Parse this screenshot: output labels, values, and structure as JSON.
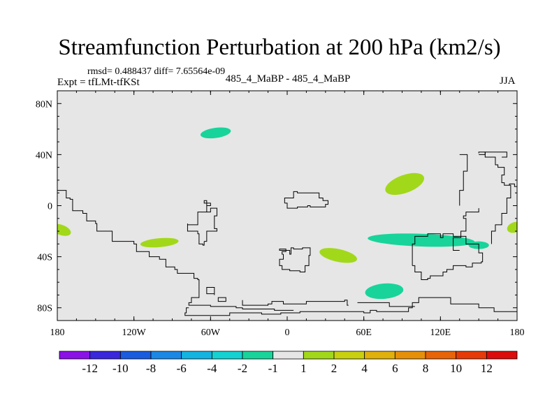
{
  "title": "Streamfunction Perturbation at 200 hPa (km2/s)",
  "stats_text": "rmsd= 0.488437 diff= 7.65564e-09",
  "experiment_label": "Expt = tfLMt-tfKSt",
  "difference_label": "485_4_MaBP - 485_4_MaBP",
  "season": "JJA",
  "chart_data": {
    "type": "heatmap",
    "title": "Streamfunction Perturbation at 200 hPa (km2/s)",
    "xlim": [
      -180,
      180
    ],
    "ylim": [
      -90,
      90
    ],
    "x_ticks": [
      {
        "value": -180,
        "label": "180"
      },
      {
        "value": -120,
        "label": "120W"
      },
      {
        "value": -60,
        "label": "60W"
      },
      {
        "value": 0,
        "label": "0"
      },
      {
        "value": 60,
        "label": "60E"
      },
      {
        "value": 120,
        "label": "120E"
      },
      {
        "value": 180,
        "label": "180"
      }
    ],
    "y_ticks": [
      {
        "value": 80,
        "label": "80N"
      },
      {
        "value": 40,
        "label": "40N"
      },
      {
        "value": 0,
        "label": "0"
      },
      {
        "value": -40,
        "label": "40S"
      },
      {
        "value": -80,
        "label": "80S"
      }
    ],
    "background_color": "#e6e6e6",
    "anomalies": [
      {
        "name": "north-atlantic-negative",
        "lon": -56,
        "lat": 57,
        "rx": 12,
        "ry": 4,
        "rot": -8,
        "level": "-2 to -1",
        "color": "#18d49a"
      },
      {
        "name": "pacific-positive-west-edge",
        "lon": -177,
        "lat": -19,
        "rx": 8,
        "ry": 4,
        "rot": 20,
        "level": "1 to 2",
        "color": "#a2d81a"
      },
      {
        "name": "south-pacific-positive",
        "lon": -100,
        "lat": -29,
        "rx": 15,
        "ry": 3.5,
        "rot": -5,
        "level": "1 to 2",
        "color": "#a2d81a"
      },
      {
        "name": "south-atlantic-positive",
        "lon": 40,
        "lat": -39,
        "rx": 15,
        "ry": 5,
        "rot": 12,
        "level": "1 to 2",
        "color": "#a2d81a"
      },
      {
        "name": "arabian-sea-positive",
        "lon": 92,
        "lat": 17,
        "rx": 16,
        "ry": 7,
        "rot": -20,
        "level": "1 to 2",
        "color": "#a2d81a"
      },
      {
        "name": "indian-ocean-negative",
        "lon": 105,
        "lat": -27,
        "rx": 42,
        "ry": 5,
        "rot": 2,
        "level": "-2 to -1",
        "color": "#18d49a"
      },
      {
        "name": "australia-negative-tail",
        "lon": 150,
        "lat": -31,
        "rx": 8,
        "ry": 3,
        "rot": 0,
        "level": "-2 to -1",
        "color": "#18d49a"
      },
      {
        "name": "southern-ocean-negative",
        "lon": 76,
        "lat": -67,
        "rx": 15,
        "ry": 6,
        "rot": -5,
        "level": "-2 to -1",
        "color": "#18d49a"
      },
      {
        "name": "pacific-positive-east-edge",
        "lon": 178,
        "lat": -17,
        "rx": 6,
        "ry": 4,
        "rot": -20,
        "level": "1 to 2",
        "color": "#a2d81a"
      }
    ],
    "colorbar": {
      "colors": [
        "#8a12e6",
        "#3a28dc",
        "#1a5ce0",
        "#1c88e6",
        "#14b4e0",
        "#14d2d2",
        "#18d49a",
        "#e6e6e6",
        "#a2d81a",
        "#c8d010",
        "#e0b00c",
        "#e6900a",
        "#e86408",
        "#e63a08",
        "#dc0c0c"
      ],
      "labels": [
        "-12",
        "-10",
        "-8",
        "-6",
        "-4",
        "-2",
        "-1",
        "1",
        "2",
        "4",
        "6",
        "8",
        "10",
        "12"
      ]
    },
    "coastline_paths": [
      [
        [
          -180,
          12
        ],
        [
          -175,
          12
        ],
        [
          -173,
          6
        ],
        [
          -170,
          5
        ],
        [
          -168,
          -4
        ],
        [
          -160,
          -6
        ],
        [
          -157,
          -12
        ],
        [
          -150,
          -14
        ],
        [
          -149,
          -20
        ],
        [
          -138,
          -20
        ],
        [
          -137,
          -28
        ],
        [
          -120,
          -30
        ],
        [
          -118,
          -36
        ],
        [
          -108,
          -40
        ],
        [
          -100,
          -42
        ],
        [
          -95,
          -48
        ],
        [
          -88,
          -50
        ],
        [
          -86,
          -53
        ],
        [
          -75,
          -53
        ],
        [
          -73,
          -57
        ],
        [
          -70,
          -58
        ],
        [
          -69,
          -72
        ],
        [
          -74,
          -72
        ],
        [
          -75,
          -76
        ],
        [
          -77,
          -78
        ],
        [
          -60,
          -79
        ],
        [
          -40,
          -80
        ],
        [
          -35,
          -81
        ],
        [
          -15,
          -81
        ],
        [
          -10,
          -82
        ],
        [
          5,
          -82
        ]
      ],
      [
        [
          -77,
          -80
        ],
        [
          -79,
          -84
        ],
        [
          -80,
          -86
        ],
        [
          -45,
          -84
        ],
        [
          -20,
          -85
        ],
        [
          -5,
          -84
        ],
        [
          10,
          -83
        ],
        [
          50,
          -83
        ],
        [
          60,
          -84
        ],
        [
          65,
          -82
        ],
        [
          70,
          -83
        ],
        [
          95,
          -80
        ],
        [
          98,
          -76
        ],
        [
          102,
          -76
        ],
        [
          103,
          -72
        ],
        [
          125,
          -72
        ],
        [
          128,
          -77
        ],
        [
          145,
          -77
        ],
        [
          150,
          -80
        ],
        [
          160,
          -80
        ],
        [
          162,
          -83
        ],
        [
          175,
          -83
        ],
        [
          180,
          -84
        ]
      ],
      [
        [
          -35,
          -74
        ],
        [
          -35,
          -78
        ],
        [
          -15,
          -77
        ],
        [
          -12,
          -75
        ],
        [
          -5,
          -75
        ],
        [
          -3,
          -77
        ],
        [
          10,
          -77
        ],
        [
          15,
          -75
        ],
        [
          45,
          -74
        ],
        [
          47,
          -78
        ],
        [
          48,
          -78
        ]
      ],
      [
        [
          55,
          -76
        ],
        [
          80,
          -77
        ],
        [
          80,
          -79
        ],
        [
          100,
          -79
        ]
      ],
      [
        [
          -65,
          -28
        ],
        [
          -63,
          -20
        ],
        [
          -55,
          -18
        ],
        [
          -57,
          -8
        ],
        [
          -55,
          -2
        ],
        [
          -60,
          -5
        ],
        [
          -63,
          0
        ],
        [
          -60,
          2
        ],
        [
          -65,
          4
        ],
        [
          -63,
          -5
        ],
        [
          -70,
          -8
        ],
        [
          -70,
          -15
        ],
        [
          -78,
          -14
        ],
        [
          -78,
          -20
        ],
        [
          -70,
          -22
        ],
        [
          -69,
          -30
        ],
        [
          -66,
          -31
        ],
        [
          -65,
          -28
        ]
      ],
      [
        [
          -2,
          2
        ],
        [
          0,
          -2
        ],
        [
          8,
          -1
        ],
        [
          16,
          0
        ],
        [
          18,
          -1
        ],
        [
          30,
          1
        ],
        [
          32,
          4
        ],
        [
          28,
          6
        ],
        [
          25,
          10
        ],
        [
          8,
          11
        ],
        [
          5,
          6
        ],
        [
          -1,
          6
        ],
        [
          -2,
          2
        ]
      ],
      [
        [
          -3,
          -38
        ],
        [
          -4,
          -36
        ],
        [
          -1,
          -34
        ],
        [
          -6,
          -34
        ],
        [
          -6,
          -35
        ],
        [
          2,
          -38
        ],
        [
          3,
          -33
        ],
        [
          5,
          -33
        ],
        [
          5,
          -34
        ],
        [
          12,
          -33
        ],
        [
          18,
          -39
        ],
        [
          17,
          -47
        ],
        [
          14,
          -52
        ],
        [
          10,
          -51
        ],
        [
          6,
          -51
        ],
        [
          2,
          -50
        ],
        [
          -4,
          -47
        ],
        [
          -6,
          -42
        ],
        [
          -3,
          -38
        ]
      ],
      [
        [
          -63,
          -65
        ],
        [
          -63,
          -69
        ],
        [
          -57,
          -70
        ],
        [
          -57,
          -64
        ],
        [
          -63,
          -65
        ]
      ],
      [
        [
          -53,
          -72
        ],
        [
          -54,
          -75
        ],
        [
          -50,
          -75
        ],
        [
          -48,
          -72
        ],
        [
          -53,
          -72
        ]
      ],
      [
        [
          98,
          -47
        ],
        [
          100,
          -52
        ],
        [
          105,
          -58
        ],
        [
          110,
          -57
        ],
        [
          112,
          -55
        ],
        [
          120,
          -55
        ],
        [
          122,
          -52
        ],
        [
          125,
          -50
        ],
        [
          130,
          -47
        ],
        [
          140,
          -48
        ],
        [
          145,
          -45
        ],
        [
          150,
          -45
        ],
        [
          152,
          -44
        ],
        [
          153,
          -37
        ],
        [
          150,
          -30
        ],
        [
          140,
          -24
        ],
        [
          130,
          -22
        ],
        [
          125,
          -22
        ],
        [
          122,
          -25
        ],
        [
          120,
          -22
        ],
        [
          115,
          -22
        ],
        [
          110,
          -24
        ],
        [
          100,
          -30
        ],
        [
          98,
          -35
        ],
        [
          98,
          -47
        ]
      ],
      [
        [
          135,
          -35
        ],
        [
          130,
          -27
        ],
        [
          130,
          -25
        ],
        [
          136,
          -20
        ],
        [
          140,
          -13
        ],
        [
          140,
          -10
        ],
        [
          138,
          -8
        ],
        [
          140,
          -5
        ],
        [
          146,
          -5
        ],
        [
          150,
          -2
        ]
      ],
      [
        [
          160,
          -30
        ],
        [
          160,
          -20
        ],
        [
          163,
          -15
        ],
        [
          168,
          -13
        ],
        [
          168,
          -6
        ],
        [
          172,
          6
        ],
        [
          175,
          13
        ],
        [
          175,
          16
        ],
        [
          170,
          18
        ],
        [
          168,
          24
        ],
        [
          170,
          30
        ],
        [
          165,
          32
        ],
        [
          163,
          38
        ],
        [
          155,
          42
        ],
        [
          152,
          42
        ],
        [
          150,
          41
        ]
      ],
      [
        [
          180,
          15
        ],
        [
          178,
          16
        ],
        [
          178,
          17
        ],
        [
          174,
          16
        ]
      ],
      [
        [
          135,
          40
        ],
        [
          140,
          40
        ],
        [
          141,
          27
        ],
        [
          138,
          27
        ],
        [
          138,
          12
        ],
        [
          135,
          11
        ],
        [
          135,
          0
        ]
      ],
      [
        [
          150,
          40
        ],
        [
          155,
          42
        ],
        [
          170,
          42
        ],
        [
          172,
          38
        ],
        [
          168,
          38
        ]
      ]
    ]
  }
}
